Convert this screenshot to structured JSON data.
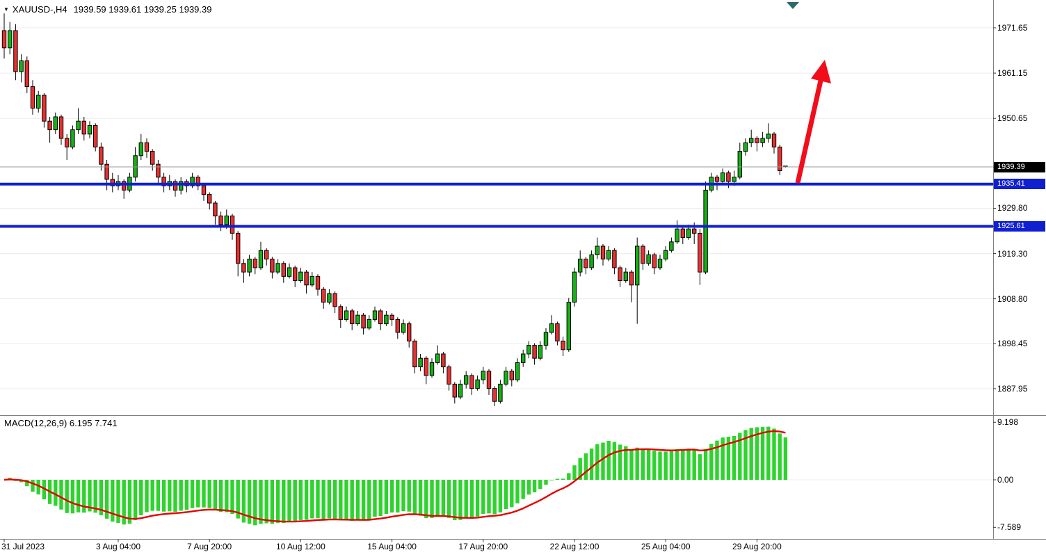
{
  "header": {
    "symbol_period": "XAUUSD-,H4",
    "ohlc": "1939.59 1939.61 1939.25 1939.39"
  },
  "icons": {
    "symbol_dropdown": "▼"
  },
  "macd": {
    "label": "MACD(12,26,9) 6.195 7.741"
  },
  "price_axis": {
    "ticks": [
      "1971.65",
      "1961.15",
      "1950.65",
      "1929.80",
      "1919.30",
      "1908.80",
      "1898.45",
      "1887.95"
    ],
    "badges": [
      {
        "text": "1939.39",
        "bg": "#000000",
        "kind": "current-price"
      },
      {
        "text": "1935.41",
        "bg": "#1020d0",
        "kind": "level"
      },
      {
        "text": "1925.61",
        "bg": "#1020d0",
        "kind": "level"
      }
    ]
  },
  "macd_axis": {
    "labels": [
      "9.198",
      "0.00",
      "-7.589"
    ]
  },
  "time_axis": {
    "labels": [
      {
        "text": "31 Jul 2023",
        "i": 0,
        "align": "left"
      },
      {
        "text": "3 Aug 04:00",
        "i": 20
      },
      {
        "text": "7 Aug 20:00",
        "i": 36
      },
      {
        "text": "10 Aug 12:00",
        "i": 52
      },
      {
        "text": "15 Aug 04:00",
        "i": 68
      },
      {
        "text": "17 Aug 20:00",
        "i": 84
      },
      {
        "text": "22 Aug 12:00",
        "i": 100
      },
      {
        "text": "25 Aug 04:00",
        "i": 116
      },
      {
        "text": "29 Aug 20:00",
        "i": 132
      }
    ]
  },
  "colors": {
    "candle_up": "#14b314",
    "candle_down": "#e83030",
    "candle_outline": "#000000",
    "macd_bar": "#2ed32e",
    "macd_signal": "#e60000",
    "level_blue": "#1020d0",
    "current_price_line": "#999999",
    "current_badge_bg": "#000000",
    "grid": "#ececec",
    "separator": "#808080",
    "tick": "#333333",
    "arrow": "#f20d1a",
    "object_anchor": "#2d6a6a"
  },
  "chart_data": [
    {
      "type": "candlestick",
      "symbol": "XAUUSD-",
      "timeframe": "H4",
      "title": "XAUUSD-,H4 1939.59 1939.61 1939.25 1939.39",
      "last_price": 1939.39,
      "ohlc_current": {
        "open": 1939.59,
        "high": 1939.61,
        "low": 1939.25,
        "close": 1939.39
      },
      "y_ticks": [
        1971.65,
        1961.15,
        1950.65,
        1929.8,
        1919.3,
        1908.8,
        1898.45,
        1887.95
      ],
      "ylim": [
        1881.5,
        1978.1
      ],
      "horizontal_levels": [
        1935.41,
        1925.61
      ],
      "x_labels": [
        "31 Jul 2023",
        "3 Aug 04:00",
        "7 Aug 20:00",
        "10 Aug 12:00",
        "15 Aug 04:00",
        "17 Aug 20:00",
        "22 Aug 12:00",
        "25 Aug 04:00",
        "29 Aug 20:00"
      ],
      "annotation": "red upward trend arrow drawn from the 1935.41 level toward the 1961-1972 zone",
      "candles_ohlc": [
        [
          1971,
          1975,
          1964.5,
          1967
        ],
        [
          1967,
          1973,
          1965.5,
          1971
        ],
        [
          1971,
          1972.5,
          1959.5,
          1961.5
        ],
        [
          1961.5,
          1965.5,
          1959,
          1964
        ],
        [
          1964,
          1965,
          1956.5,
          1958
        ],
        [
          1958,
          1959.5,
          1951.5,
          1953
        ],
        [
          1953,
          1957,
          1952,
          1956
        ],
        [
          1956,
          1956.5,
          1948.5,
          1950
        ],
        [
          1950,
          1951,
          1945,
          1948
        ],
        [
          1948,
          1952,
          1947,
          1951
        ],
        [
          1951,
          1951.5,
          1944.5,
          1946
        ],
        [
          1946,
          1947,
          1941,
          1944
        ],
        [
          1944,
          1949,
          1943.5,
          1948
        ],
        [
          1948,
          1953,
          1947,
          1950
        ],
        [
          1950,
          1951,
          1945.5,
          1947
        ],
        [
          1947,
          1950,
          1946,
          1949
        ],
        [
          1949,
          1949.5,
          1943,
          1944
        ],
        [
          1944,
          1945,
          1938.5,
          1940
        ],
        [
          1940,
          1941,
          1934,
          1936.5
        ],
        [
          1936.5,
          1938,
          1933.5,
          1935
        ],
        [
          1935,
          1937.5,
          1934,
          1936
        ],
        [
          1936,
          1936.5,
          1932,
          1934
        ],
        [
          1934,
          1938,
          1933.5,
          1937
        ],
        [
          1937,
          1944,
          1936,
          1942
        ],
        [
          1942,
          1947,
          1941,
          1945
        ],
        [
          1945,
          1946,
          1941.5,
          1943
        ],
        [
          1943,
          1943.5,
          1938.5,
          1940
        ],
        [
          1940,
          1941,
          1935.5,
          1937
        ],
        [
          1937,
          1938,
          1933.5,
          1935
        ],
        [
          1935,
          1937.5,
          1934,
          1936
        ],
        [
          1936,
          1936.5,
          1932.5,
          1934
        ],
        [
          1934,
          1937,
          1933,
          1936
        ],
        [
          1936,
          1936.5,
          1933.5,
          1935
        ],
        [
          1935,
          1938,
          1934.5,
          1937
        ],
        [
          1937,
          1937.5,
          1934,
          1935
        ],
        [
          1935,
          1935.5,
          1931.5,
          1933
        ],
        [
          1933,
          1933.5,
          1929.5,
          1931
        ],
        [
          1931,
          1931.5,
          1926,
          1928
        ],
        [
          1928,
          1929,
          1924.5,
          1926
        ],
        [
          1926,
          1929.5,
          1925,
          1928
        ],
        [
          1928,
          1928.5,
          1922.5,
          1924
        ],
        [
          1924,
          1924.5,
          1914,
          1917
        ],
        [
          1917,
          1918,
          1912.5,
          1915
        ],
        [
          1915,
          1919,
          1914,
          1918
        ],
        [
          1918,
          1918.5,
          1914.5,
          1916
        ],
        [
          1916,
          1922,
          1915.5,
          1920
        ],
        [
          1920,
          1920.5,
          1916.5,
          1918
        ],
        [
          1918,
          1918.5,
          1913.5,
          1915
        ],
        [
          1915,
          1918,
          1914.5,
          1917
        ],
        [
          1917,
          1917.5,
          1912.5,
          1914
        ],
        [
          1914,
          1917,
          1913.5,
          1916
        ],
        [
          1916,
          1916.5,
          1911.5,
          1913
        ],
        [
          1913,
          1916,
          1912.5,
          1915
        ],
        [
          1915,
          1915.5,
          1910,
          1912
        ],
        [
          1912,
          1915,
          1911.5,
          1914
        ],
        [
          1914,
          1914.5,
          1909.5,
          1911
        ],
        [
          1911,
          1911.5,
          1906.5,
          1908
        ],
        [
          1908,
          1911,
          1907.5,
          1910
        ],
        [
          1910,
          1910.5,
          1905.5,
          1907
        ],
        [
          1907,
          1907.5,
          1902,
          1904
        ],
        [
          1904,
          1907,
          1903.5,
          1906
        ],
        [
          1906,
          1906.5,
          1901.5,
          1903
        ],
        [
          1903,
          1906,
          1902.5,
          1905
        ],
        [
          1905,
          1905.5,
          1900.5,
          1902
        ],
        [
          1902,
          1905,
          1901.5,
          1904
        ],
        [
          1904,
          1907,
          1903.5,
          1906
        ],
        [
          1906,
          1906.5,
          1901.5,
          1903
        ],
        [
          1903,
          1906,
          1902.5,
          1905
        ],
        [
          1905,
          1905.5,
          1902.5,
          1904
        ],
        [
          1904,
          1904.5,
          1899.5,
          1901
        ],
        [
          1901,
          1904,
          1900.5,
          1903
        ],
        [
          1903,
          1903.5,
          1897.5,
          1899
        ],
        [
          1899,
          1899.5,
          1891.5,
          1893
        ],
        [
          1893,
          1896,
          1892,
          1895
        ],
        [
          1895,
          1895.5,
          1889,
          1891
        ],
        [
          1891,
          1895,
          1890.5,
          1894
        ],
        [
          1894,
          1898,
          1893.5,
          1896
        ],
        [
          1896,
          1896.5,
          1891.5,
          1893
        ],
        [
          1893,
          1893.5,
          1887.5,
          1889
        ],
        [
          1889,
          1889.5,
          1884.5,
          1886
        ],
        [
          1886,
          1890,
          1885.5,
          1889
        ],
        [
          1889,
          1892,
          1888,
          1891
        ],
        [
          1891,
          1891.5,
          1886.5,
          1888
        ],
        [
          1888,
          1891,
          1887.5,
          1890
        ],
        [
          1890,
          1893,
          1889,
          1892
        ],
        [
          1892,
          1892.5,
          1886.5,
          1888
        ],
        [
          1888,
          1888.5,
          1883.9,
          1885
        ],
        [
          1885,
          1890,
          1884.5,
          1889
        ],
        [
          1889,
          1893,
          1888.5,
          1892
        ],
        [
          1892,
          1892.5,
          1888.5,
          1890
        ],
        [
          1890,
          1895,
          1889.5,
          1894
        ],
        [
          1894,
          1897,
          1893,
          1896
        ],
        [
          1896,
          1899,
          1895,
          1898
        ],
        [
          1898,
          1898.5,
          1893.5,
          1895
        ],
        [
          1895,
          1899,
          1894.5,
          1898
        ],
        [
          1898,
          1902,
          1897,
          1901
        ],
        [
          1901,
          1905,
          1900.5,
          1903
        ],
        [
          1903,
          1903.5,
          1898,
          1899
        ],
        [
          1899,
          1900,
          1895.5,
          1897
        ],
        [
          1897,
          1909,
          1896.5,
          1908
        ],
        [
          1908,
          1916,
          1907,
          1915
        ],
        [
          1915,
          1920,
          1914,
          1918
        ],
        [
          1918,
          1918.5,
          1914.5,
          1916
        ],
        [
          1916,
          1920,
          1915.5,
          1919
        ],
        [
          1919,
          1923,
          1918,
          1921
        ],
        [
          1921,
          1921.5,
          1916.5,
          1918
        ],
        [
          1918,
          1921,
          1917.5,
          1920
        ],
        [
          1920,
          1920.5,
          1914.5,
          1916
        ],
        [
          1916,
          1916.5,
          1911.5,
          1913
        ],
        [
          1913,
          1916,
          1912.5,
          1915
        ],
        [
          1915,
          1915.5,
          1908,
          1912
        ],
        [
          1912,
          1923,
          1903,
          1921
        ],
        [
          1921,
          1921.5,
          1915.5,
          1917
        ],
        [
          1917,
          1920,
          1916.5,
          1919
        ],
        [
          1919,
          1919.5,
          1914.5,
          1916
        ],
        [
          1916,
          1919,
          1915.5,
          1918
        ],
        [
          1918,
          1921,
          1917.5,
          1920
        ],
        [
          1920,
          1923,
          1919.5,
          1922
        ],
        [
          1922,
          1927,
          1921.5,
          1925
        ],
        [
          1925,
          1925.5,
          1921.5,
          1923
        ],
        [
          1923,
          1926,
          1922.5,
          1925
        ],
        [
          1925,
          1926.5,
          1921.5,
          1924
        ],
        [
          1924,
          1925,
          1912,
          1915
        ],
        [
          1915,
          1936,
          1914.5,
          1934
        ],
        [
          1934,
          1938,
          1933.5,
          1937
        ],
        [
          1937,
          1937.5,
          1934,
          1936
        ],
        [
          1936,
          1939,
          1935.5,
          1938
        ],
        [
          1938,
          1938.5,
          1934.5,
          1936
        ],
        [
          1936,
          1938.5,
          1935,
          1937
        ],
        [
          1937,
          1945,
          1936.5,
          1943
        ],
        [
          1943,
          1946,
          1942,
          1945
        ],
        [
          1945,
          1948,
          1944,
          1946
        ],
        [
          1946,
          1946.5,
          1943,
          1945
        ],
        [
          1945,
          1947.5,
          1944,
          1946
        ],
        [
          1946,
          1949.5,
          1945,
          1947
        ],
        [
          1947,
          1947.5,
          1942.5,
          1944
        ],
        [
          1944,
          1944.5,
          1937.5,
          1938.5
        ],
        [
          1939.59,
          1939.61,
          1939.25,
          1939.39
        ]
      ]
    },
    {
      "type": "macd",
      "label": "MACD(12,26,9)",
      "params": {
        "fast": 12,
        "slow": 26,
        "signal": 9
      },
      "current_values": {
        "macd": 6.195,
        "signal": 7.741
      },
      "y_ticks": [
        9.198,
        0,
        -7.589
      ],
      "derived": "histogram and signal computed from candles_ohlc closes"
    }
  ]
}
